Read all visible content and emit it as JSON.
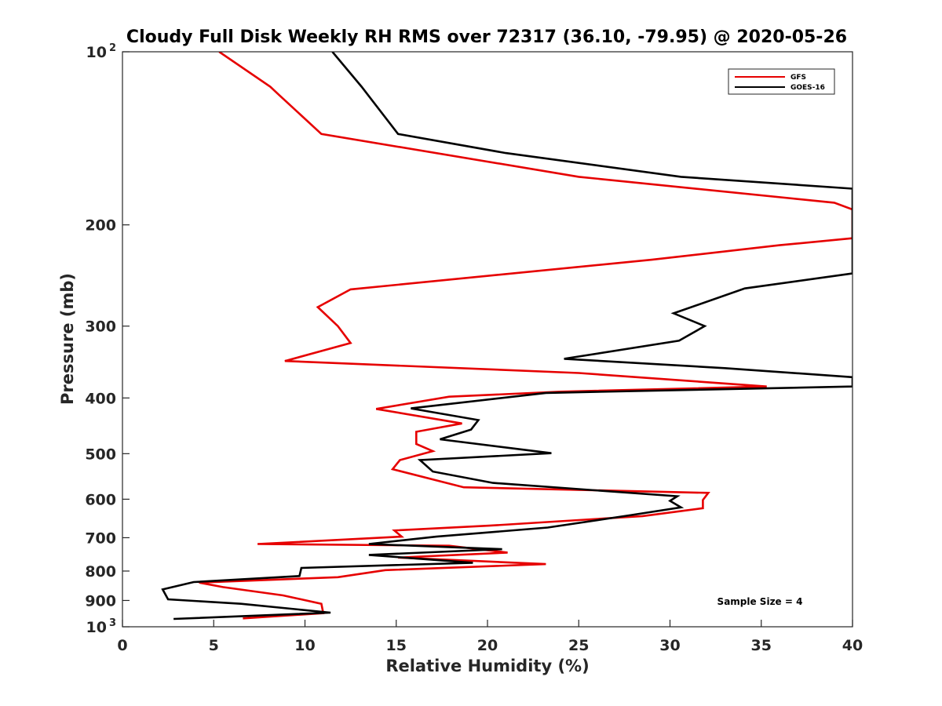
{
  "chart_data": {
    "type": "line",
    "title": "Cloudy Full Disk Weekly RH RMS over 72317 (36.10, -79.95) @ 2020-05-26",
    "xlabel": "Relative Humidity (%)",
    "ylabel": "Pressure (mb)",
    "xlim": [
      0,
      40
    ],
    "ylim": [
      100,
      1000
    ],
    "y_scale": "log",
    "y_reversed": true,
    "x_ticks": [
      "0",
      "5",
      "10",
      "15",
      "20",
      "25",
      "30",
      "35",
      "40"
    ],
    "y_ticks": [
      {
        "value": 100,
        "base": "10",
        "exp": "2"
      },
      {
        "value": 200,
        "label": "200"
      },
      {
        "value": 300,
        "label": "300"
      },
      {
        "value": 400,
        "label": "400"
      },
      {
        "value": 500,
        "label": "500"
      },
      {
        "value": 600,
        "label": "600"
      },
      {
        "value": 700,
        "label": "700"
      },
      {
        "value": 800,
        "label": "800"
      },
      {
        "value": 900,
        "label": "900"
      },
      {
        "value": 1000,
        "base": "10",
        "exp": "3"
      }
    ],
    "grid": false,
    "legend_position": "top-right",
    "annotation": "Sample Size = 4",
    "series": [
      {
        "name": "GFS",
        "color": "#e60000",
        "points": [
          [
            5.3,
            100
          ],
          [
            8.1,
            115
          ],
          [
            8.6,
            119
          ],
          [
            10.9,
            139
          ],
          [
            25,
            165
          ],
          [
            39,
            183
          ],
          [
            40,
            188
          ],
          [
            40,
            211
          ],
          [
            36,
            217
          ],
          [
            29,
            230
          ],
          [
            12.5,
            259
          ],
          [
            10.7,
            278
          ],
          [
            11.8,
            300
          ],
          [
            12.5,
            321
          ],
          [
            8.9,
            345
          ],
          [
            25,
            362
          ],
          [
            35.3,
            382
          ],
          [
            24,
            390
          ],
          [
            17.9,
            398
          ],
          [
            13.9,
            418
          ],
          [
            18.6,
            443
          ],
          [
            16.1,
            458
          ],
          [
            16.1,
            481
          ],
          [
            17,
            495
          ],
          [
            15.2,
            513
          ],
          [
            14.8,
            532
          ],
          [
            18.7,
            572
          ],
          [
            32.1,
            585
          ],
          [
            31.8,
            602
          ],
          [
            31.8,
            622
          ],
          [
            28.5,
            642
          ],
          [
            20.1,
            667
          ],
          [
            14.9,
            680
          ],
          [
            15.3,
            697
          ],
          [
            7.4,
            718
          ],
          [
            17.9,
            723
          ],
          [
            21.1,
            743
          ],
          [
            15.1,
            758
          ],
          [
            23.2,
            778
          ],
          [
            14.4,
            797
          ],
          [
            11.8,
            820
          ],
          [
            4.2,
            838
          ],
          [
            5.5,
            853
          ],
          [
            8.8,
            882
          ],
          [
            10.9,
            912
          ],
          [
            11,
            947
          ],
          [
            6.6,
            967
          ]
        ]
      },
      {
        "name": "GOES-16",
        "color": "#000000",
        "points": [
          [
            11.5,
            100
          ],
          [
            13.1,
            115
          ],
          [
            15.1,
            139
          ],
          [
            21,
            150
          ],
          [
            30.6,
            165
          ],
          [
            40,
            173
          ],
          [
            40,
            243
          ],
          [
            34.1,
            258
          ],
          [
            30.2,
            285
          ],
          [
            31.9,
            300
          ],
          [
            30.5,
            318
          ],
          [
            24.2,
            342
          ],
          [
            33,
            355
          ],
          [
            40,
            368
          ],
          [
            40,
            382
          ],
          [
            23.2,
            392
          ],
          [
            15.8,
            417
          ],
          [
            19.5,
            437
          ],
          [
            19.1,
            454
          ],
          [
            17.4,
            472
          ],
          [
            23.5,
            499
          ],
          [
            16.3,
            513
          ],
          [
            17,
            537
          ],
          [
            20.3,
            562
          ],
          [
            30.4,
            593
          ],
          [
            30,
            604
          ],
          [
            30.6,
            620
          ],
          [
            27.8,
            640
          ],
          [
            23.3,
            672
          ],
          [
            17.2,
            697
          ],
          [
            13.5,
            718
          ],
          [
            20.8,
            733
          ],
          [
            13.5,
            750
          ],
          [
            19.2,
            774
          ],
          [
            9.8,
            790
          ],
          [
            9.7,
            816
          ],
          [
            3.9,
            836
          ],
          [
            2.2,
            861
          ],
          [
            2.5,
            896
          ],
          [
            6.5,
            912
          ],
          [
            11.4,
            945
          ],
          [
            2.8,
            969
          ]
        ]
      }
    ]
  }
}
